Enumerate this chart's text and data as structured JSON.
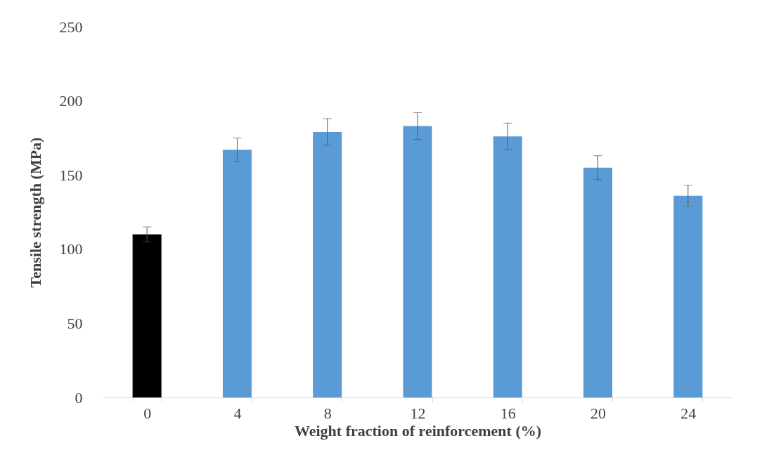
{
  "chart_data": {
    "type": "bar",
    "xlabel": "Weight fraction of reinforcement (%)",
    "ylabel": "Tensile strength (MPa)",
    "categories": [
      "0",
      "4",
      "8",
      "12",
      "16",
      "20",
      "24"
    ],
    "values": [
      110,
      167,
      179,
      183,
      176,
      155,
      136
    ],
    "colors": [
      "#000000",
      "#5b9bd5",
      "#5b9bd5",
      "#5b9bd5",
      "#5b9bd5",
      "#5b9bd5",
      "#5b9bd5"
    ],
    "errors": [
      5,
      8,
      9,
      9,
      9,
      8,
      7
    ],
    "ylim": [
      0,
      250
    ],
    "yticks": [
      0,
      50,
      100,
      150,
      200,
      250
    ],
    "grid": false
  }
}
